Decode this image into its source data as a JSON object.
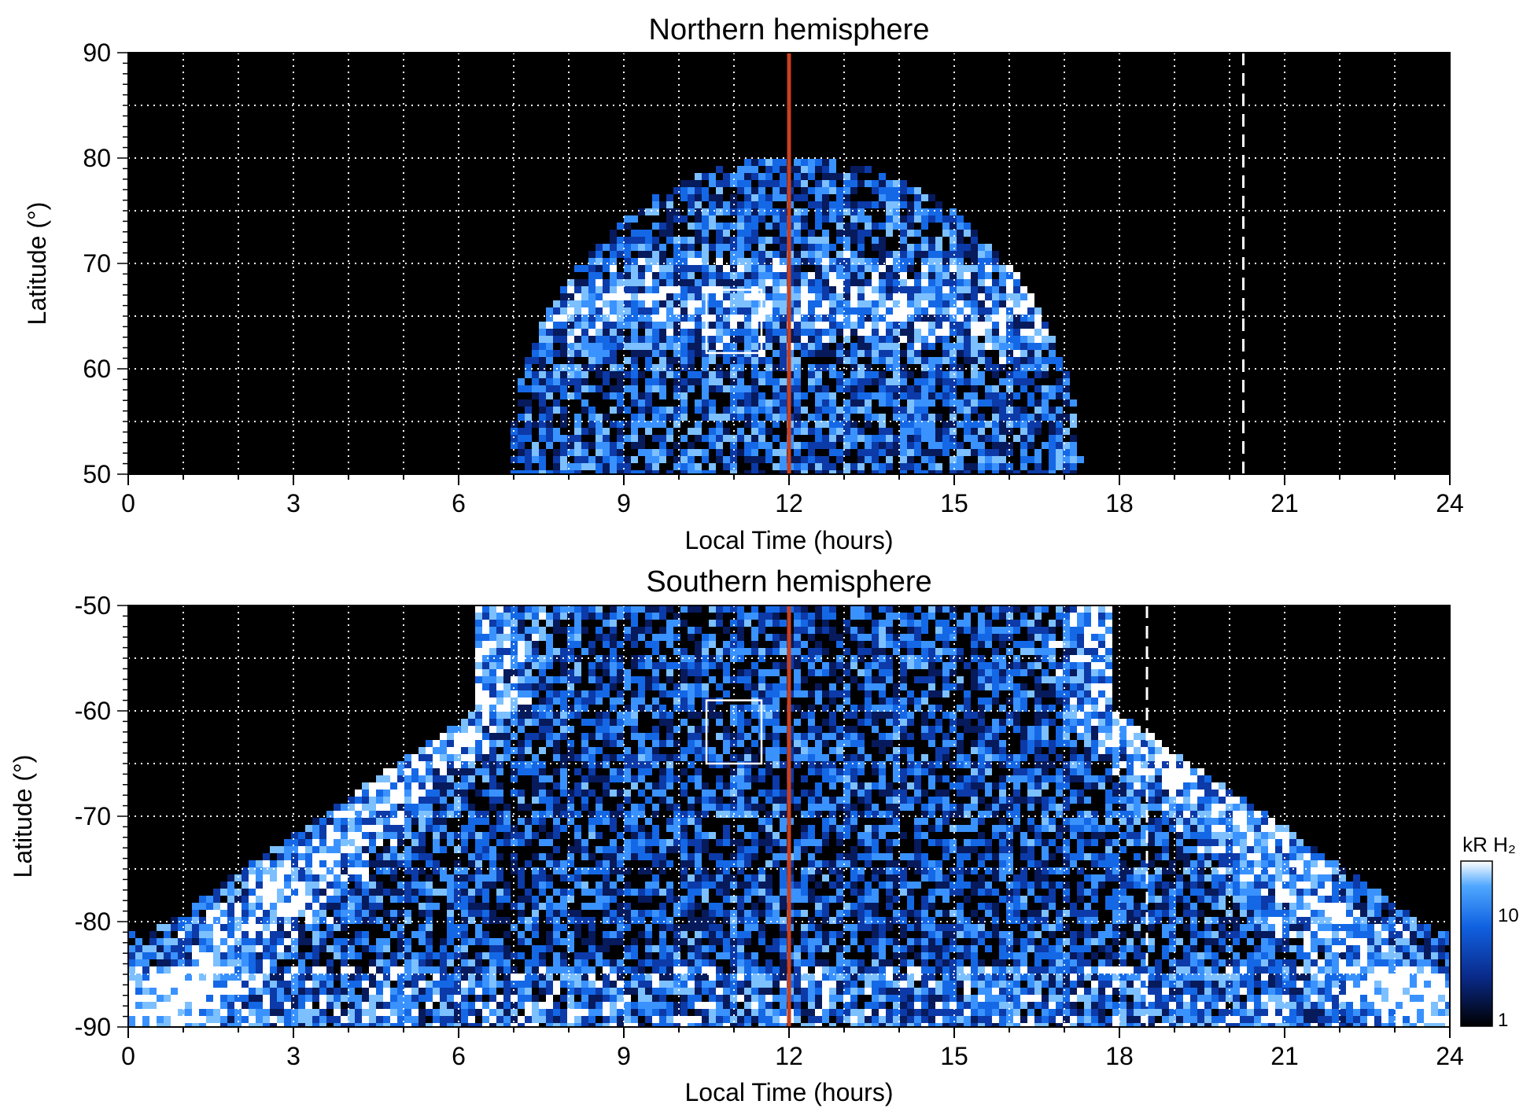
{
  "chart_data": [
    {
      "type": "heatmap",
      "title": "Northern hemisphere",
      "xlabel": "Local Time (hours)",
      "ylabel": "Latitude (°)",
      "xlim": [
        0,
        24
      ],
      "ylim": [
        50,
        90
      ],
      "x_ticks": [
        "0",
        "3",
        "6",
        "9",
        "12",
        "15",
        "18",
        "21",
        "24"
      ],
      "y_ticks": [
        "50",
        "60",
        "70",
        "80",
        "90"
      ],
      "grid": true,
      "noon_line_x": 12,
      "dashed_line_x": 20.25,
      "box": {
        "x": [
          10.5,
          11.5
        ],
        "y": [
          61.5,
          67.5
        ]
      },
      "emission_extent": {
        "lt_range": [
          7,
          17.3
        ],
        "lat_max": 80
      }
    },
    {
      "type": "heatmap",
      "title": "Southern hemisphere",
      "xlabel": "Local Time (hours)",
      "ylabel": "Latitude (°)",
      "xlim": [
        0,
        24
      ],
      "ylim": [
        -90,
        -50
      ],
      "x_ticks": [
        "0",
        "3",
        "6",
        "9",
        "12",
        "15",
        "18",
        "21",
        "24"
      ],
      "y_ticks": [
        "-50",
        "-60",
        "-70",
        "-80",
        "-90"
      ],
      "grid": true,
      "noon_line_x": 12,
      "dashed_line_x": 18.5,
      "box": {
        "x": [
          10.5,
          11.5
        ],
        "y": [
          -65,
          -59
        ]
      },
      "emission_extent": {
        "lt_range": [
          0,
          24
        ],
        "lat_min": -90
      }
    }
  ],
  "colorbar": {
    "label": "kR H₂",
    "ticks": [
      "10",
      "1"
    ],
    "scale": "log",
    "range": [
      1,
      30
    ]
  },
  "colors": {
    "background": "#000000",
    "noon_line": "#c8401e",
    "grid": "#ffffff",
    "colormap": [
      "#000000",
      "#0a2a8a",
      "#1060e0",
      "#50a8ff",
      "#ffffff"
    ]
  }
}
